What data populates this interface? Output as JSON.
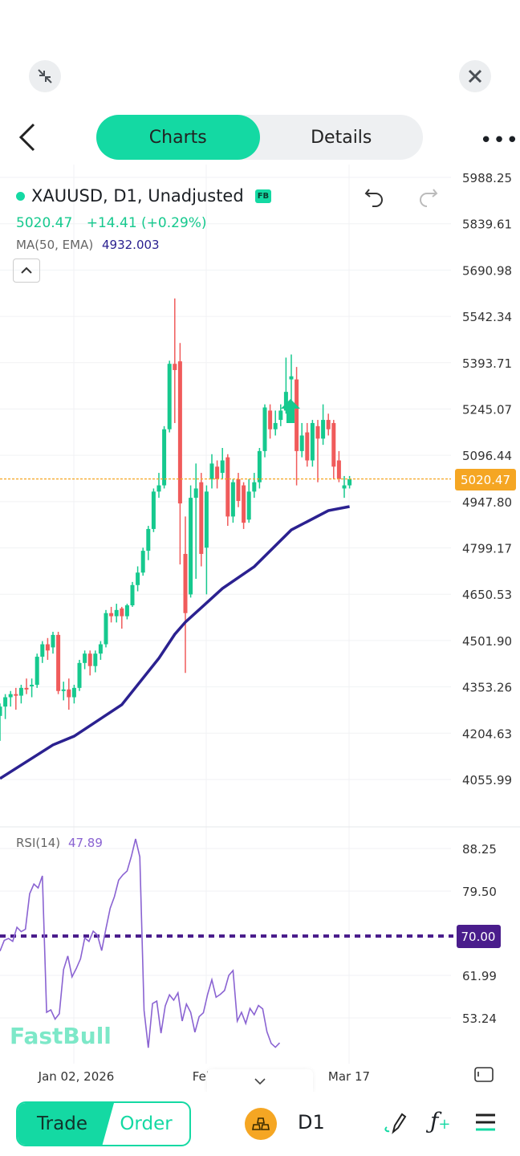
{
  "window": {
    "collapse_icon": "collapse-icon",
    "close_icon": "close-icon"
  },
  "header": {
    "tabs": [
      {
        "label": "Charts",
        "active": true
      },
      {
        "label": "Details",
        "active": false
      }
    ],
    "back_icon": "chevron-left-icon",
    "more_icon": "more-dots-icon"
  },
  "symbol": {
    "title": "XAUUSD, D1, Unadjusted",
    "badge": "FB",
    "price": "5020.47",
    "change": "+14.41 (+0.29%)",
    "ma_label": "MA(50, EMA)",
    "ma_value": "4932.003"
  },
  "rsi": {
    "label": "RSI(14)",
    "value": "47.89"
  },
  "watermark": "FastBull",
  "colors": {
    "up": "#16c98e",
    "down": "#f05b5b",
    "ema": "#2b2190",
    "rsi": "#8a63d2",
    "rsi_level": "#4a1d8c",
    "price_line": "#f5a623",
    "accent": "#14d9a3"
  },
  "chart_data": {
    "type": "candlestick",
    "title": "XAUUSD, D1, Unadjusted",
    "price_ticks": [
      "5988.25",
      "5839.61",
      "5690.98",
      "5542.34",
      "5393.71",
      "5245.07",
      "5096.44",
      "4947.80",
      "4799.17",
      "4650.53",
      "4501.90",
      "4353.26",
      "4204.63",
      "4055.99"
    ],
    "ylim": [
      4055.99,
      5988.25
    ],
    "current_price": 5020.47,
    "current_price_label": "5020.47",
    "x_labels": [
      "Jan 02, 2026",
      "Feb 09",
      "Mar 17"
    ],
    "candles": [
      [
        4260,
        4300,
        4180,
        4290
      ],
      [
        4290,
        4330,
        4250,
        4320
      ],
      [
        4320,
        4340,
        4290,
        4330
      ],
      [
        4330,
        4350,
        4280,
        4325
      ],
      [
        4325,
        4360,
        4300,
        4350
      ],
      [
        4350,
        4380,
        4330,
        4345
      ],
      [
        4355,
        4380,
        4320,
        4360
      ],
      [
        4360,
        4460,
        4350,
        4450
      ],
      [
        4450,
        4500,
        4430,
        4490
      ],
      [
        4490,
        4510,
        4440,
        4470
      ],
      [
        4480,
        4530,
        4460,
        4520
      ],
      [
        4520,
        4530,
        4330,
        4340
      ],
      [
        4340,
        4370,
        4310,
        4345
      ],
      [
        4345,
        4380,
        4280,
        4320
      ],
      [
        4320,
        4360,
        4300,
        4350
      ],
      [
        4350,
        4440,
        4340,
        4430
      ],
      [
        4430,
        4470,
        4410,
        4460
      ],
      [
        4460,
        4470,
        4390,
        4420
      ],
      [
        4420,
        4470,
        4400,
        4460
      ],
      [
        4460,
        4500,
        4440,
        4490
      ],
      [
        4490,
        4600,
        4480,
        4590
      ],
      [
        4590,
        4610,
        4560,
        4580
      ],
      [
        4580,
        4620,
        4560,
        4600
      ],
      [
        4605,
        4610,
        4540,
        4580
      ],
      [
        4580,
        4620,
        4570,
        4615
      ],
      [
        4615,
        4690,
        4610,
        4680
      ],
      [
        4680,
        4740,
        4660,
        4720
      ],
      [
        4720,
        4800,
        4710,
        4790
      ],
      [
        4790,
        4870,
        4760,
        4860
      ],
      [
        4860,
        4990,
        4850,
        4980
      ],
      [
        4980,
        5040,
        4960,
        5000
      ],
      [
        5000,
        5190,
        4990,
        5180
      ],
      [
        5180,
        5400,
        5170,
        5390
      ],
      [
        5390,
        5600,
        5200,
        5370
      ],
      [
        5398,
        5457,
        4746,
        4942
      ],
      [
        4780,
        4900,
        4398,
        4590
      ],
      [
        4650,
        5000,
        4640,
        4960
      ],
      [
        4960,
        5070,
        4700,
        4990
      ],
      [
        5010,
        5040,
        4740,
        4780
      ],
      [
        4800,
        5000,
        4650,
        4980
      ],
      [
        5020,
        5100,
        4990,
        5070
      ],
      [
        5060,
        5080,
        4990,
        5020
      ],
      [
        5040,
        5120,
        5020,
        5080
      ],
      [
        5090,
        5100,
        4870,
        4900
      ],
      [
        4900,
        5020,
        4880,
        5010
      ],
      [
        5020,
        5040,
        4930,
        4950
      ],
      [
        5000,
        5010,
        4860,
        4880
      ],
      [
        4890,
        5020,
        4880,
        4980
      ],
      [
        4980,
        5040,
        4960,
        5010
      ],
      [
        5010,
        5120,
        4990,
        5110
      ],
      [
        5110,
        5260,
        5090,
        5250
      ],
      [
        5240,
        5260,
        5150,
        5180
      ],
      [
        5180,
        5240,
        5160,
        5200
      ],
      [
        5210,
        5260,
        5190,
        5240
      ],
      [
        5240,
        5410,
        5230,
        5300
      ],
      [
        5340,
        5420,
        5260,
        5350
      ],
      [
        5340,
        5380,
        5000,
        5110
      ],
      [
        5110,
        5200,
        5090,
        5160
      ],
      [
        5170,
        5200,
        5060,
        5080
      ],
      [
        5080,
        5210,
        5060,
        5200
      ],
      [
        5190,
        5210,
        5010,
        5150
      ],
      [
        5150,
        5260,
        5130,
        5210
      ],
      [
        5210,
        5230,
        5160,
        5180
      ],
      [
        5200,
        5210,
        5020,
        5060
      ],
      [
        5080,
        5110,
        5010,
        5020
      ],
      [
        4990,
        5030,
        4960,
        5000
      ],
      [
        5000,
        5030,
        4990,
        5020
      ]
    ],
    "ema50": [
      [
        0,
        4059
      ],
      [
        10,
        4167
      ],
      [
        14,
        4195
      ],
      [
        23,
        4296
      ],
      [
        30,
        4445
      ],
      [
        33,
        4522
      ],
      [
        35,
        4561
      ],
      [
        42,
        4669
      ],
      [
        48,
        4739
      ],
      [
        55,
        4857
      ],
      [
        62,
        4919
      ],
      [
        66,
        4932
      ]
    ],
    "rsi_ticks": [
      "88.25",
      "79.50",
      "70.00",
      "61.99",
      "53.24"
    ],
    "rsi_level": 70,
    "rsi_level_label": "70.00",
    "rsi_values": [
      66.9,
      69.1,
      69.5,
      68.9,
      71.8,
      70.9,
      71.4,
      78.7,
      80.7,
      79.9,
      82.4,
      54.3,
      54.8,
      52.9,
      54.0,
      63.1,
      65.9,
      61.6,
      63.3,
      65.3,
      69.6,
      68.9,
      71.0,
      70.2,
      67.0,
      71.5,
      75.7,
      78.1,
      81.5,
      82.6,
      83.4,
      86.4,
      90.0,
      86.3,
      54.7,
      47.0,
      56.1,
      56.6,
      50.0,
      55.6,
      57.9,
      56.8,
      58.3,
      52.5,
      56.0,
      54.3,
      50.2,
      53.4,
      54.2,
      58.0,
      61.0,
      57.4,
      58.0,
      58.8,
      61.9,
      62.9,
      52.5,
      54.3,
      52.0,
      55.1,
      53.8,
      55.7,
      55.0,
      50.3,
      47.9,
      47.1,
      48.0
    ]
  },
  "toolbar": {
    "trade": "Trade",
    "order": "Order",
    "timeframe": "D1",
    "symbol_icon": "gold-bars-icon",
    "draw_icon": "pen-icon",
    "indicator_icon": "function-plus-icon",
    "menu_icon": "hamburger-icon",
    "fullscreen_icon": "landscape-icon",
    "expand_icon": "chevron-down-icon"
  }
}
